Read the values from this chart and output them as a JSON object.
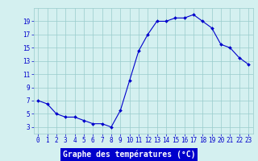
{
  "hours": [
    0,
    1,
    2,
    3,
    4,
    5,
    6,
    7,
    8,
    9,
    10,
    11,
    12,
    13,
    14,
    15,
    16,
    17,
    18,
    19,
    20,
    21,
    22,
    23
  ],
  "temps": [
    7.0,
    6.5,
    5.0,
    4.5,
    4.5,
    4.0,
    3.5,
    3.5,
    3.0,
    5.5,
    10.0,
    14.5,
    17.0,
    19.0,
    19.0,
    19.5,
    19.5,
    20.0,
    19.0,
    18.0,
    15.5,
    15.0,
    13.5,
    12.5
  ],
  "line_color": "#0000cc",
  "marker": "D",
  "marker_size": 2.0,
  "bg_color": "#d4f0f0",
  "grid_color": "#99cccc",
  "xlabel": "Graphe des températures (°C)",
  "ylim": [
    2,
    21
  ],
  "xlim": [
    -0.5,
    23.5
  ],
  "yticks": [
    3,
    5,
    7,
    9,
    11,
    13,
    15,
    17,
    19
  ],
  "xticks": [
    0,
    1,
    2,
    3,
    4,
    5,
    6,
    7,
    8,
    9,
    10,
    11,
    12,
    13,
    14,
    15,
    16,
    17,
    18,
    19,
    20,
    21,
    22,
    23
  ],
  "tick_label_color": "#0000cc",
  "xlabel_bg": "#0000cc",
  "xlabel_fg": "#ffffff",
  "tick_fontsize": 5.5,
  "xlabel_fontsize": 7.0
}
